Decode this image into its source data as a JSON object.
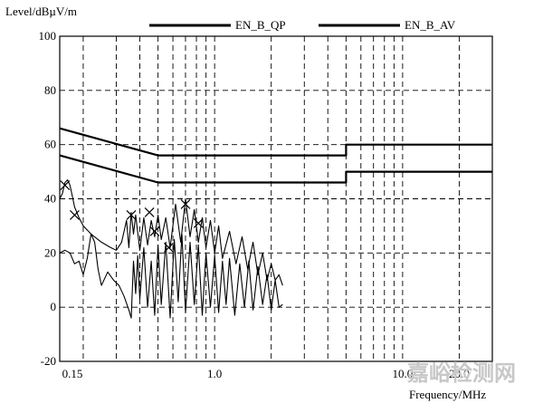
{
  "chart_data": {
    "type": "line",
    "ylabel": "Level/dBµV/m",
    "xlabel": "Frequency/MHz",
    "x_scale": "log",
    "xlim": [
      0.15,
      30.0
    ],
    "ylim": [
      -20,
      100
    ],
    "y_ticks": [
      100,
      80,
      60,
      40,
      20,
      0,
      -20
    ],
    "x_tick_labels": [
      {
        "value": 0.15,
        "label": "0.15"
      },
      {
        "value": 1.0,
        "label": "1.0"
      },
      {
        "value": 10.0,
        "label": "10.0"
      },
      {
        "value": 20.0,
        "label": "20.0"
      }
    ],
    "x_gridlines": [
      0.15,
      0.2,
      0.3,
      0.4,
      0.5,
      0.6,
      0.7,
      0.8,
      0.9,
      1.0,
      2.0,
      3.0,
      4.0,
      5.0,
      6.0,
      7.0,
      8.0,
      9.0,
      10.0,
      20.0,
      30.0
    ],
    "grid": true,
    "grid_style": "dashed",
    "legend_position": "top",
    "series": [
      {
        "name": "EN_B_QP",
        "style": "limit",
        "points": [
          [
            0.15,
            66
          ],
          [
            0.5,
            56
          ],
          [
            5.0,
            56
          ],
          [
            5.0,
            60
          ],
          [
            30.0,
            60
          ]
        ]
      },
      {
        "name": "EN_B_AV",
        "style": "limit",
        "points": [
          [
            0.15,
            56
          ],
          [
            0.5,
            46
          ],
          [
            5.0,
            46
          ],
          [
            5.0,
            50
          ],
          [
            30.0,
            50
          ]
        ]
      },
      {
        "style": "measurement_upper",
        "points": [
          [
            0.15,
            40
          ],
          [
            0.155,
            42
          ],
          [
            0.16,
            46
          ],
          [
            0.165,
            47
          ],
          [
            0.17,
            45
          ],
          [
            0.175,
            41
          ],
          [
            0.18,
            37
          ],
          [
            0.19,
            33
          ],
          [
            0.2,
            30
          ],
          [
            0.22,
            27
          ],
          [
            0.25,
            24
          ],
          [
            0.28,
            22
          ],
          [
            0.3,
            21
          ],
          [
            0.32,
            24
          ],
          [
            0.34,
            32
          ],
          [
            0.35,
            22
          ],
          [
            0.36,
            35
          ],
          [
            0.37,
            27
          ],
          [
            0.38,
            34
          ],
          [
            0.4,
            21
          ],
          [
            0.42,
            33
          ],
          [
            0.44,
            23
          ],
          [
            0.46,
            32
          ],
          [
            0.48,
            26
          ],
          [
            0.5,
            34
          ],
          [
            0.52,
            25
          ],
          [
            0.55,
            33
          ],
          [
            0.58,
            22
          ],
          [
            0.62,
            38
          ],
          [
            0.66,
            24
          ],
          [
            0.7,
            40
          ],
          [
            0.74,
            26
          ],
          [
            0.78,
            36
          ],
          [
            0.82,
            24
          ],
          [
            0.86,
            33
          ],
          [
            0.9,
            22
          ],
          [
            0.95,
            32
          ],
          [
            1.0,
            20
          ],
          [
            1.05,
            30
          ],
          [
            1.1,
            18
          ],
          [
            1.2,
            28
          ],
          [
            1.3,
            16
          ],
          [
            1.4,
            26
          ],
          [
            1.5,
            14
          ],
          [
            1.6,
            24
          ],
          [
            1.7,
            12
          ],
          [
            1.8,
            20
          ],
          [
            1.9,
            10
          ],
          [
            2.0,
            16
          ],
          [
            2.1,
            10
          ],
          [
            2.2,
            12
          ],
          [
            2.3,
            8
          ]
        ]
      },
      {
        "style": "measurement_lower",
        "points": [
          [
            0.15,
            20
          ],
          [
            0.16,
            21
          ],
          [
            0.17,
            20
          ],
          [
            0.18,
            16
          ],
          [
            0.19,
            17
          ],
          [
            0.2,
            12
          ],
          [
            0.21,
            18
          ],
          [
            0.22,
            27
          ],
          [
            0.23,
            24
          ],
          [
            0.24,
            14
          ],
          [
            0.25,
            8
          ],
          [
            0.27,
            13
          ],
          [
            0.29,
            10
          ],
          [
            0.31,
            8
          ],
          [
            0.33,
            4
          ],
          [
            0.35,
            -1
          ],
          [
            0.36,
            -4
          ],
          [
            0.37,
            17
          ],
          [
            0.38,
            5
          ],
          [
            0.39,
            19
          ],
          [
            0.4,
            3
          ],
          [
            0.42,
            22
          ],
          [
            0.44,
            0
          ],
          [
            0.46,
            17
          ],
          [
            0.48,
            -3
          ],
          [
            0.5,
            23
          ],
          [
            0.52,
            1
          ],
          [
            0.55,
            24
          ],
          [
            0.58,
            -4
          ],
          [
            0.61,
            25
          ],
          [
            0.64,
            2
          ],
          [
            0.67,
            27
          ],
          [
            0.7,
            -2
          ],
          [
            0.74,
            24
          ],
          [
            0.78,
            1
          ],
          [
            0.82,
            23
          ],
          [
            0.86,
            -3
          ],
          [
            0.9,
            20
          ],
          [
            0.95,
            0
          ],
          [
            1.0,
            19
          ],
          [
            1.05,
            -2
          ],
          [
            1.1,
            17
          ],
          [
            1.15,
            1
          ],
          [
            1.2,
            18
          ],
          [
            1.28,
            -3
          ],
          [
            1.36,
            16
          ],
          [
            1.44,
            0
          ],
          [
            1.52,
            17
          ],
          [
            1.6,
            -1
          ],
          [
            1.7,
            15
          ],
          [
            1.8,
            1
          ],
          [
            1.9,
            12
          ],
          [
            2.0,
            -1
          ],
          [
            2.1,
            10
          ],
          [
            2.2,
            0
          ],
          [
            2.3,
            1
          ]
        ]
      }
    ],
    "markers": [
      {
        "type": "x",
        "x": 0.16,
        "y": 45
      },
      {
        "type": "x",
        "x": 0.18,
        "y": 34
      },
      {
        "type": "x",
        "x": 0.45,
        "y": 35
      },
      {
        "type": "x",
        "x": 0.48,
        "y": 28
      },
      {
        "type": "x",
        "x": 0.7,
        "y": 38
      },
      {
        "type": "x",
        "x": 0.82,
        "y": 31
      },
      {
        "type": "x",
        "x": 0.36,
        "y": 34
      },
      {
        "type": "x",
        "x": 0.57,
        "y": 22
      }
    ]
  },
  "watermark": {
    "text": "嘉峪检测网",
    "color": "#c8c8c8"
  },
  "colors": {
    "line": "#000000",
    "grid": "#000000",
    "background": "#ffffff"
  }
}
